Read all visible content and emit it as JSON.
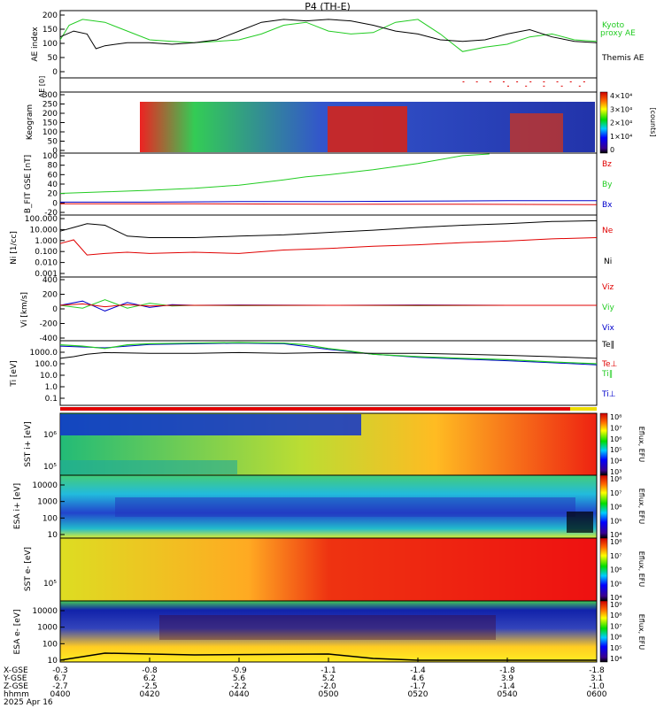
{
  "title": "P4 (TH-E)",
  "date_label": "2025 Apr 16",
  "time_axis": {
    "start": "0400",
    "end": "0600",
    "ticks": [
      "0400",
      "0420",
      "0440",
      "0500",
      "0520",
      "0540",
      "0600"
    ],
    "row_labels": [
      "X-GSE",
      "Y-GSE",
      "Z-GSE",
      "hhmm"
    ],
    "rows": [
      [
        "-0.3",
        "-0.8",
        "-0.9",
        "-1.1",
        "-1.4",
        "-1.8",
        "-1.8"
      ],
      [
        "6.7",
        "6.2",
        "5.6",
        "5.2",
        "4.6",
        "3.9",
        "3.1"
      ],
      [
        "-2.7",
        "-2.5",
        "-2.2",
        "-2.0",
        "-1.7",
        "-1.4",
        "-1.0"
      ]
    ]
  },
  "colors": {
    "red": "#e00000",
    "green": "#22cc22",
    "blue": "#0000cc",
    "black": "#000000",
    "yellow": "#eedd00"
  },
  "chart_data": [
    {
      "type": "line",
      "id": "ae",
      "ylabel": "AE index",
      "ylim": [
        -30,
        200
      ],
      "yticks": [
        "200",
        "150",
        "100",
        "50",
        "0"
      ],
      "legend": [
        "Kyoto",
        "proxy AE",
        "Themis AE"
      ],
      "series": [
        {
          "name": "Kyoto proxy AE",
          "color": "green",
          "x": [
            0,
            2,
            5,
            10,
            15,
            20,
            25,
            30,
            35,
            40,
            45,
            50,
            55,
            60,
            65,
            70,
            75,
            80,
            85,
            90,
            95,
            100,
            105,
            110,
            115,
            120
          ],
          "y": [
            100,
            150,
            170,
            160,
            130,
            100,
            95,
            90,
            95,
            100,
            120,
            150,
            160,
            130,
            120,
            125,
            160,
            170,
            120,
            60,
            75,
            85,
            110,
            120,
            100,
            95
          ]
        },
        {
          "name": "Themis AE",
          "color": "black",
          "x": [
            0,
            3,
            6,
            8,
            10,
            15,
            20,
            25,
            30,
            35,
            40,
            45,
            50,
            55,
            60,
            65,
            70,
            75,
            80,
            85,
            90,
            95,
            100,
            105,
            110,
            115,
            120
          ],
          "y": [
            110,
            130,
            120,
            70,
            80,
            90,
            90,
            85,
            90,
            100,
            130,
            160,
            170,
            165,
            170,
            165,
            150,
            130,
            120,
            100,
            95,
            100,
            120,
            135,
            110,
            95,
            90
          ]
        }
      ]
    },
    {
      "type": "scatter",
      "id": "ae_flags",
      "ylabel": "AE [0]",
      "ylim": [
        0,
        1
      ],
      "x": [
        90,
        93,
        96,
        99,
        102,
        105,
        108,
        111,
        114,
        117,
        100,
        104,
        108,
        112,
        116
      ],
      "y": [
        0.75,
        0.75,
        0.75,
        0.75,
        0.75,
        0.75,
        0.75,
        0.75,
        0.75,
        0.75,
        0.45,
        0.45,
        0.45,
        0.45,
        0.45
      ]
    },
    {
      "type": "heatmap",
      "id": "keogram",
      "ylabel": "Keogram",
      "ylim": [
        0,
        300
      ],
      "yticks": [
        "300",
        "250",
        "200",
        "150",
        "100",
        "50",
        "0"
      ],
      "colorbar": {
        "label": "[counts]",
        "ticks": [
          "4×10⁴",
          "3×10⁴",
          "2×10⁴",
          "1×10⁴",
          "0"
        ]
      }
    },
    {
      "type": "line",
      "id": "bfield",
      "ylabel": "B_FIT GSE [nT]",
      "ylim": [
        -20,
        100
      ],
      "yticks": [
        "100",
        "80",
        "60",
        "40",
        "20",
        "0",
        "-20"
      ],
      "legend": [
        "Bz",
        "By",
        "Bx"
      ],
      "series": [
        {
          "name": "By",
          "color": "green",
          "x": [
            0,
            10,
            20,
            30,
            40,
            50,
            55,
            60,
            70,
            80,
            90,
            96
          ],
          "y": [
            22,
            25,
            28,
            32,
            38,
            48,
            54,
            58,
            68,
            80,
            95,
            105
          ]
        },
        {
          "name": "Bx",
          "color": "blue",
          "x": [
            0,
            20,
            40,
            60,
            80,
            100,
            120
          ],
          "y": [
            5,
            5,
            6,
            6,
            7,
            8,
            8
          ]
        },
        {
          "name": "Bz",
          "color": "red",
          "x": [
            0,
            30,
            60,
            90,
            120
          ],
          "y": [
            2,
            2,
            1,
            1,
            0
          ]
        }
      ]
    },
    {
      "type": "line",
      "id": "density",
      "yscale": "log",
      "ylabel": "Ni [1/cc]",
      "ylim": [
        0.001,
        100
      ],
      "yticks": [
        "100.000",
        "10.000",
        "1.000",
        "0.100",
        "0.010",
        "0.001"
      ],
      "legend": [
        "Ne",
        "Ni"
      ],
      "series": [
        {
          "name": "Ne",
          "color": "black",
          "x": [
            0,
            3,
            6,
            10,
            15,
            20,
            30,
            40,
            50,
            60,
            70,
            80,
            90,
            100,
            110,
            120
          ],
          "y": [
            5,
            10,
            20,
            15,
            2,
            1.5,
            1.5,
            2,
            2.5,
            4,
            6,
            10,
            15,
            20,
            30,
            35
          ]
        },
        {
          "name": "Ni",
          "color": "red",
          "x": [
            0,
            3,
            6,
            10,
            15,
            20,
            30,
            40,
            50,
            60,
            70,
            80,
            90,
            100,
            110,
            120
          ],
          "y": [
            0.5,
            1,
            0.06,
            0.08,
            0.1,
            0.08,
            0.1,
            0.08,
            0.15,
            0.2,
            0.3,
            0.4,
            0.6,
            0.8,
            1.2,
            1.5
          ]
        }
      ]
    },
    {
      "type": "line",
      "id": "velocity",
      "ylabel": "Vi [km/s]",
      "ylim": [
        -500,
        400
      ],
      "yticks": [
        "400",
        "200",
        "0",
        "-200",
        "-400"
      ],
      "legend": [
        "Viz",
        "Viy",
        "Vix"
      ],
      "series": [
        {
          "name": "Vix",
          "color": "blue",
          "x": [
            0,
            5,
            10,
            15,
            20,
            25,
            30,
            40,
            60,
            80,
            100,
            120
          ],
          "y": [
            0,
            60,
            -80,
            40,
            -30,
            10,
            0,
            5,
            0,
            5,
            0,
            0
          ]
        },
        {
          "name": "Viy",
          "color": "green",
          "x": [
            0,
            5,
            10,
            15,
            20,
            25,
            30,
            40,
            60,
            80,
            100,
            120
          ],
          "y": [
            0,
            -40,
            80,
            -40,
            30,
            -10,
            0,
            -5,
            0,
            -5,
            0,
            0
          ]
        },
        {
          "name": "Viz",
          "color": "red",
          "x": [
            0,
            5,
            10,
            15,
            20,
            25,
            30,
            40,
            60,
            80,
            100,
            120
          ],
          "y": [
            0,
            20,
            -20,
            10,
            -10,
            0,
            0,
            0,
            0,
            0,
            0,
            0
          ]
        }
      ]
    },
    {
      "type": "line",
      "id": "temperature",
      "yscale": "log",
      "ylabel": "Ti [eV]",
      "ylim": [
        0.05,
        3000
      ],
      "yticks": [
        "1000.0",
        "100.0",
        "10.0",
        "1.0",
        "0.1"
      ],
      "legend": [
        "Te‖",
        "Te⊥",
        "Ti‖",
        "Ti⊥"
      ],
      "series": [
        {
          "name": "Ti‖",
          "color": "green",
          "x": [
            0,
            5,
            10,
            15,
            20,
            30,
            40,
            50,
            55,
            60,
            65,
            70,
            80,
            90,
            100,
            110,
            120
          ],
          "y": [
            1500,
            1200,
            800,
            1500,
            1800,
            2000,
            2200,
            2000,
            1500,
            800,
            500,
            300,
            200,
            150,
            120,
            80,
            60
          ]
        },
        {
          "name": "Ti⊥",
          "color": "blue",
          "x": [
            0,
            10,
            20,
            40,
            50,
            60,
            70,
            80,
            90,
            100,
            110,
            120
          ],
          "y": [
            1200,
            900,
            1600,
            2000,
            1800,
            700,
            300,
            180,
            130,
            100,
            70,
            50
          ]
        },
        {
          "name": "Te‖",
          "color": "black",
          "x": [
            0,
            3,
            6,
            10,
            20,
            30,
            40,
            50,
            60,
            70,
            80,
            90,
            100,
            110,
            120
          ],
          "y": [
            150,
            200,
            300,
            400,
            350,
            350,
            400,
            350,
            400,
            350,
            350,
            300,
            250,
            200,
            150
          ]
        }
      ]
    },
    {
      "type": "heatmap",
      "id": "sst_ion",
      "ylabel": "SST i+ [eV]",
      "yticks": [
        "10⁶",
        "10⁵"
      ],
      "colorbar": {
        "label": "Eflux, EFU",
        "ticks": [
          "10⁸",
          "10⁷",
          "10⁶",
          "10⁵",
          "10⁴",
          "10³"
        ]
      }
    },
    {
      "type": "heatmap",
      "id": "esa_ion",
      "ylabel": "ESA i+ [eV]",
      "yticks": [
        "10000",
        "1000",
        "100",
        "10"
      ],
      "colorbar": {
        "label": "Eflux, EFU",
        "ticks": [
          "10⁸",
          "10⁷",
          "10⁶",
          "10⁵",
          "10⁴"
        ]
      }
    },
    {
      "type": "heatmap",
      "id": "sst_elec",
      "ylabel": "SST e- [eV]",
      "yticks": [
        "10⁵"
      ],
      "colorbar": {
        "label": "Eflux, EFU",
        "ticks": [
          "10⁸",
          "10⁷",
          "10⁶",
          "10⁵",
          "10⁴"
        ]
      }
    },
    {
      "type": "heatmap",
      "id": "esa_elec",
      "ylabel": "ESA e- [eV]",
      "yticks": [
        "10000",
        "1000",
        "100",
        "10"
      ],
      "colorbar": {
        "label": "Eflux, EFU",
        "ticks": [
          "10⁹",
          "10⁸",
          "10⁷",
          "10⁶",
          "10⁵",
          "10⁴"
        ]
      }
    }
  ]
}
